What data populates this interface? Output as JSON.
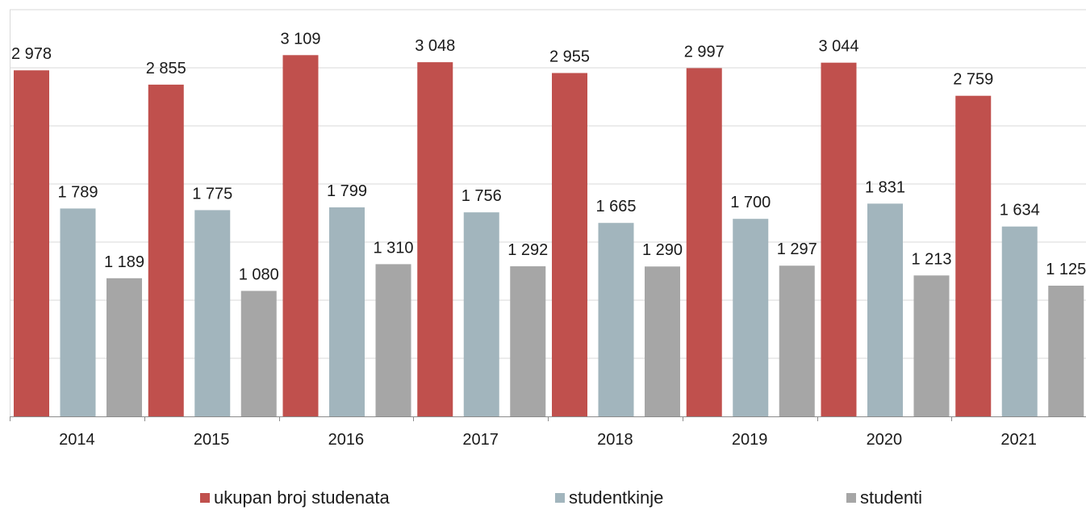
{
  "chart_data": {
    "type": "bar",
    "categories": [
      "2014",
      "2015",
      "2016",
      "2017",
      "2018",
      "2019",
      "2020",
      "2021"
    ],
    "series": [
      {
        "name": "ukupan broj studenata",
        "color": "#c0504d",
        "values": [
          2978,
          2855,
          3109,
          3048,
          2955,
          2997,
          3044,
          2759
        ],
        "labels": [
          "2 978",
          "2 855",
          "3 109",
          "3 048",
          "2 955",
          "2 997",
          "3 044",
          "2 759"
        ]
      },
      {
        "name": "studentkinje",
        "color": "#a2b5bd",
        "values": [
          1789,
          1775,
          1799,
          1756,
          1665,
          1700,
          1831,
          1634
        ],
        "labels": [
          "1 789",
          "1 775",
          "1 799",
          "1 756",
          "1 665",
          "1 700",
          "1 831",
          "1 634"
        ]
      },
      {
        "name": "studenti",
        "color": "#a6a6a6",
        "values": [
          1189,
          1080,
          1310,
          1292,
          1290,
          1297,
          1213,
          1125
        ],
        "labels": [
          "1 189",
          "1 080",
          "1 310",
          "1 292",
          "1 290",
          "1 297",
          "1 213",
          "1 125"
        ]
      }
    ],
    "ylim": [
      0,
      3500
    ],
    "grid": true,
    "legend_position": "bottom"
  }
}
